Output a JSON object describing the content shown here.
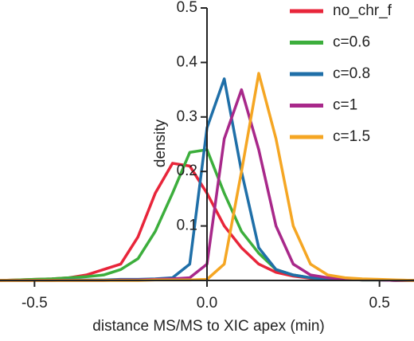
{
  "chart_data": {
    "type": "line",
    "x_label": "distance MS/MS to XIC apex (min)",
    "y_label": "density",
    "x": [
      -0.6,
      -0.55,
      -0.5,
      -0.45,
      -0.4,
      -0.35,
      -0.3,
      -0.25,
      -0.2,
      -0.15,
      -0.1,
      -0.05,
      0,
      0.05,
      0.1,
      0.15,
      0.2,
      0.25,
      0.3,
      0.35,
      0.4,
      0.45,
      0.5,
      0.55,
      0.6
    ],
    "series": [
      {
        "name": "no_chr_f",
        "color": "#e8253a",
        "values": [
          0,
          0.001,
          0.002,
          0.003,
          0.005,
          0.01,
          0.02,
          0.03,
          0.08,
          0.16,
          0.215,
          0.21,
          0.16,
          0.1,
          0.06,
          0.03,
          0.015,
          0.008,
          0.004,
          0.003,
          0.002,
          0.001,
          0.001,
          0,
          0
        ]
      },
      {
        "name": "c=0.6",
        "color": "#3cae3c",
        "values": [
          0,
          0.001,
          0.002,
          0.003,
          0.005,
          0.007,
          0.01,
          0.02,
          0.04,
          0.09,
          0.16,
          0.235,
          0.24,
          0.16,
          0.09,
          0.05,
          0.02,
          0.01,
          0.005,
          0.003,
          0.002,
          0.001,
          0.001,
          0,
          0
        ]
      },
      {
        "name": "c=0.8",
        "color": "#1f6fa8",
        "values": [
          0,
          0,
          0,
          0,
          0.001,
          0.001,
          0.001,
          0.002,
          0.002,
          0.003,
          0.005,
          0.03,
          0.28,
          0.37,
          0.2,
          0.06,
          0.02,
          0.01,
          0.005,
          0.003,
          0.002,
          0.001,
          0.001,
          0,
          0
        ]
      },
      {
        "name": "c=1",
        "color": "#a8288a",
        "values": [
          0,
          0,
          0,
          0,
          0,
          0,
          0,
          0.001,
          0.001,
          0.002,
          0.003,
          0.005,
          0.03,
          0.26,
          0.35,
          0.24,
          0.1,
          0.03,
          0.01,
          0.005,
          0.003,
          0.002,
          0.001,
          0,
          0
        ]
      },
      {
        "name": "c=1.5",
        "color": "#f5a623",
        "values": [
          0,
          0,
          0,
          0,
          0,
          0,
          0,
          0,
          0,
          0.001,
          0.001,
          0.001,
          0.002,
          0.03,
          0.2,
          0.38,
          0.26,
          0.1,
          0.03,
          0.01,
          0.005,
          0.003,
          0.002,
          0.001,
          0
        ]
      }
    ],
    "xlim": [
      -0.6,
      0.6
    ],
    "ylim": [
      0,
      0.5
    ],
    "xticks": [
      -0.5,
      {
        "value": 0,
        "label": "0.0"
      },
      0.5
    ],
    "yticks": [
      0.1,
      0.2,
      0.3,
      0.4,
      0.5
    ],
    "legend": "upper right"
  }
}
